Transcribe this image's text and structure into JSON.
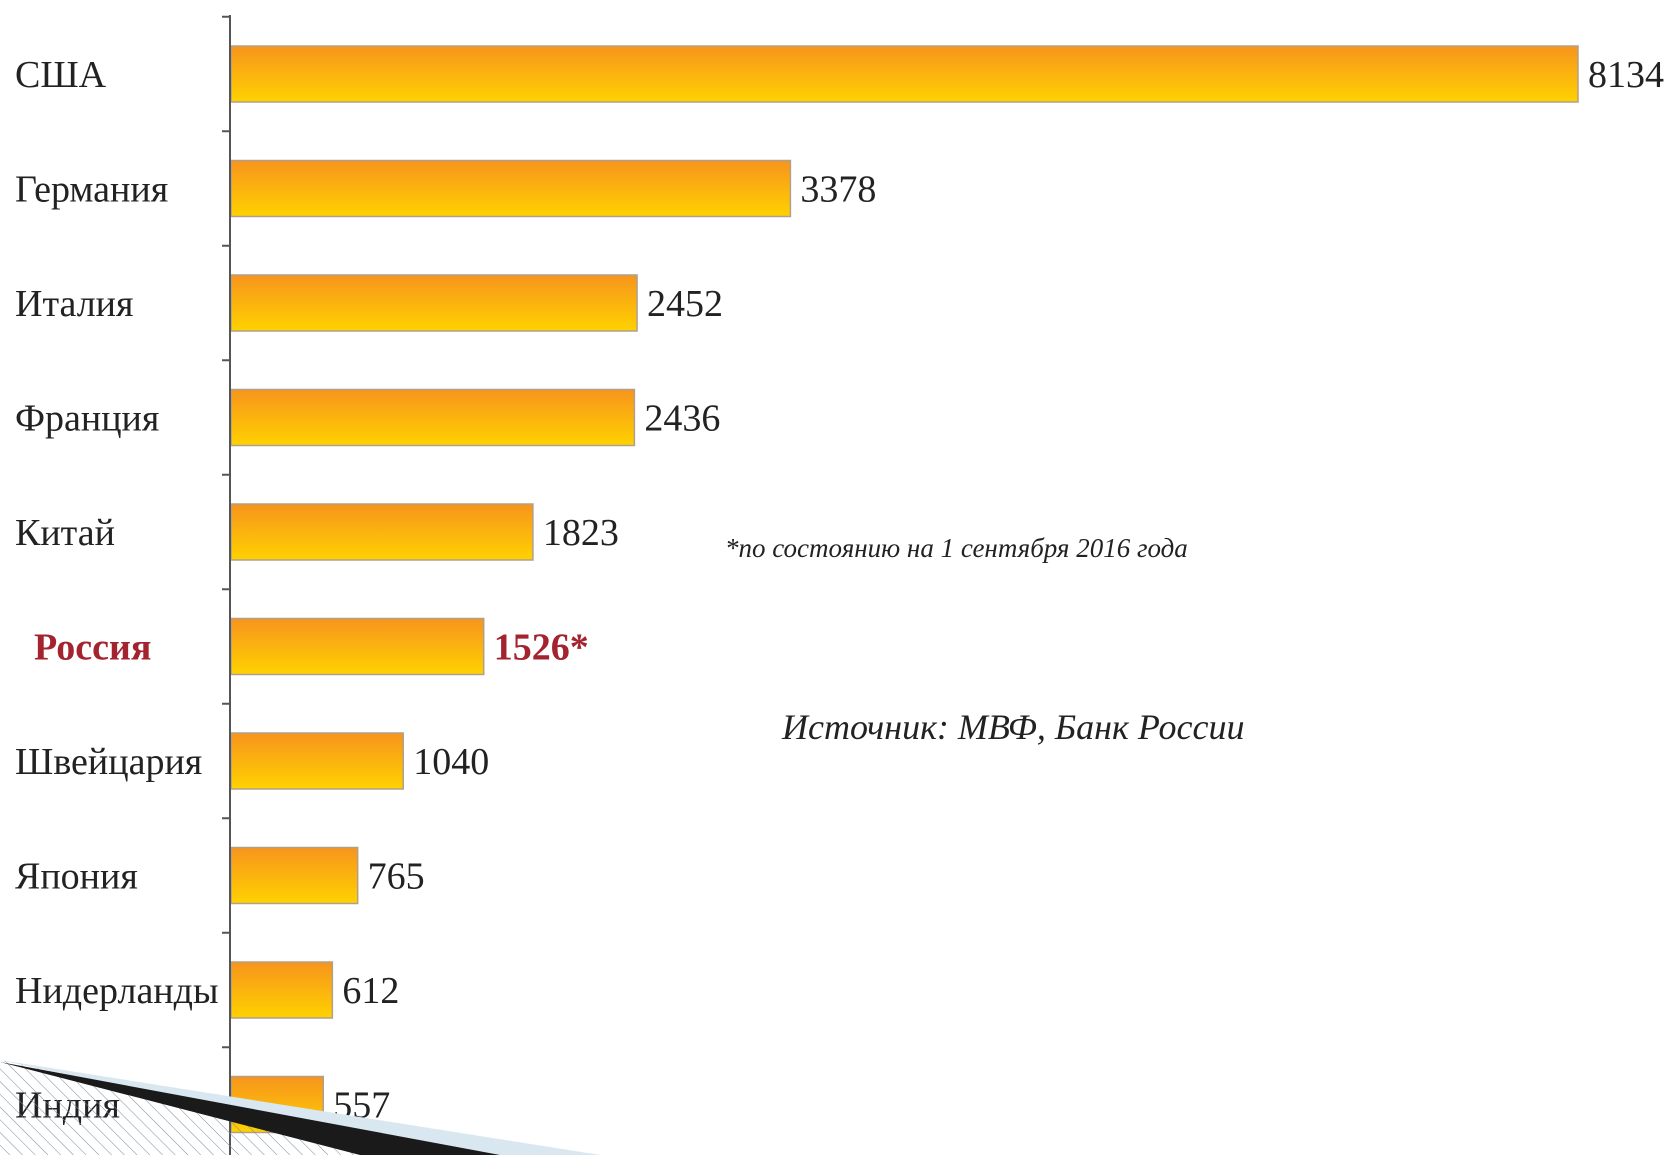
{
  "chart_data": {
    "type": "bar",
    "orientation": "horizontal",
    "categories": [
      "США",
      "Германия",
      "Италия",
      "Франция",
      "Китай",
      "Россия",
      "Швейцария",
      "Япония",
      "Нидерланды",
      "Индия"
    ],
    "values": [
      8134,
      3378,
      2452,
      2436,
      1823,
      1526,
      1040,
      765,
      612,
      557
    ],
    "value_labels": [
      "8134",
      "3378",
      "2452",
      "2436",
      "1823",
      "1526*",
      "1040",
      "765",
      "612",
      "557"
    ],
    "highlight": {
      "category": "Россия",
      "color": "#a3232f"
    },
    "bar_colors": {
      "top": "#f7941d",
      "bottom": "#ffd200"
    },
    "title": "",
    "xlabel": "",
    "ylabel": "",
    "xlim": [
      0,
      8134
    ],
    "grid": false,
    "legend": "none"
  },
  "annotations": {
    "footnote": "*по состоянию на 1 сентября 2016 года",
    "source": "Источник: МВФ, Банк России"
  }
}
